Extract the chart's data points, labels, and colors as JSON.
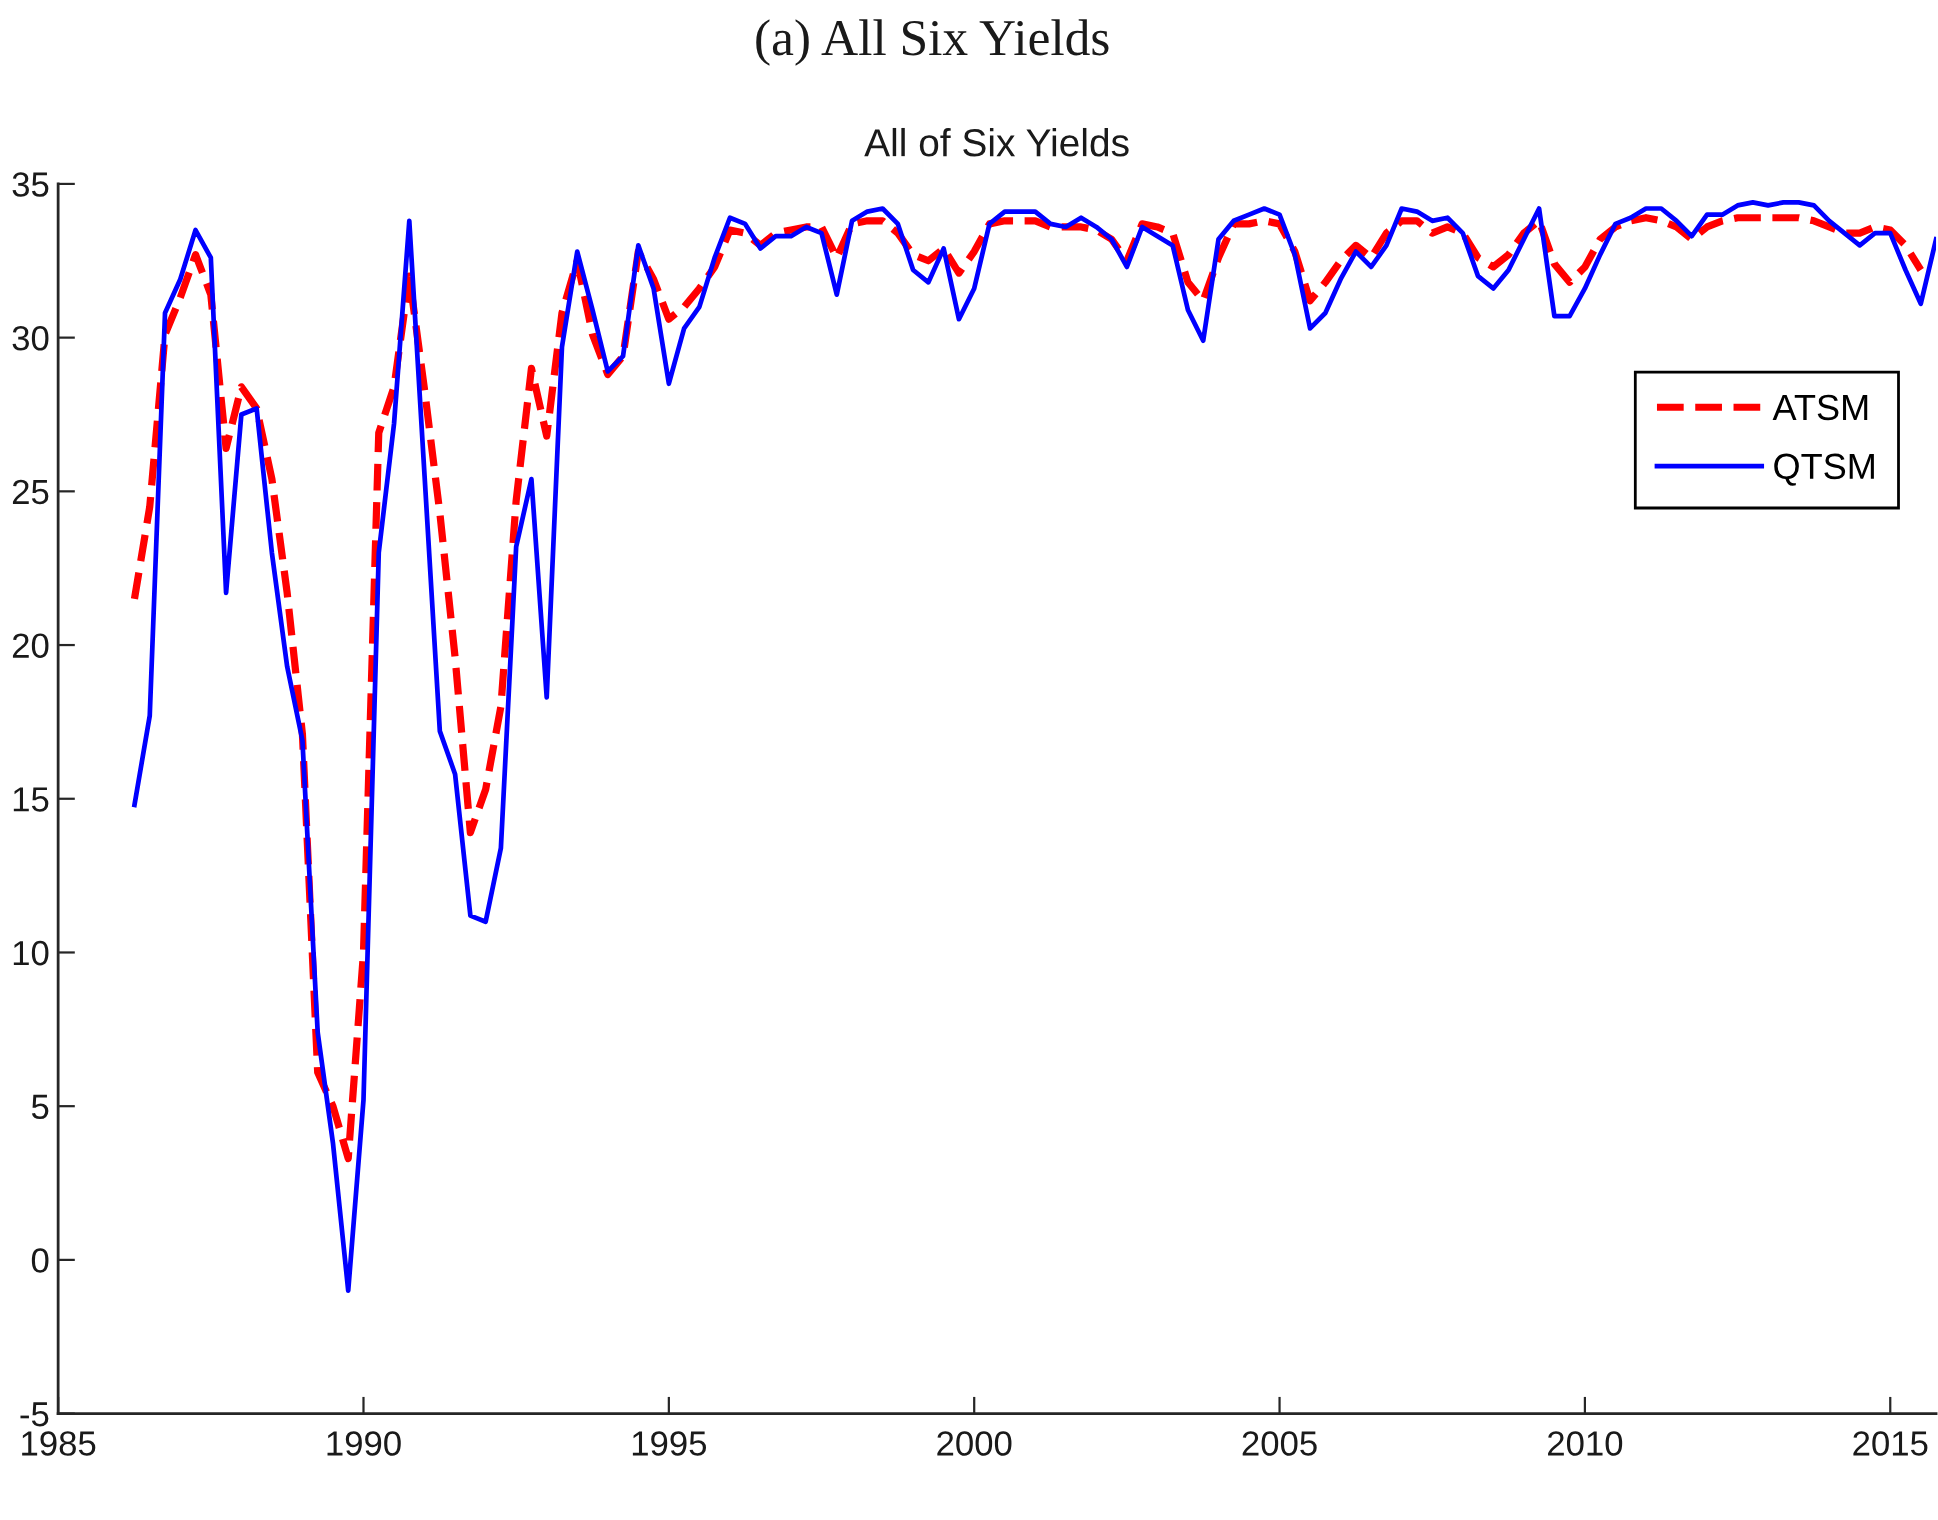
{
  "chart_data": {
    "type": "line",
    "title": "All of Six Yields",
    "annotations": [
      "(a) All Six Yields"
    ],
    "x": [
      1986.25,
      1986.5,
      1986.75,
      1987,
      1987.25,
      1987.5,
      1987.75,
      1988,
      1988.25,
      1988.5,
      1988.75,
      1989,
      1989.25,
      1989.5,
      1989.75,
      1990,
      1990.25,
      1990.5,
      1990.75,
      1991,
      1991.25,
      1991.5,
      1991.75,
      1992,
      1992.25,
      1992.5,
      1992.75,
      1993,
      1993.25,
      1993.5,
      1993.75,
      1994,
      1994.25,
      1994.5,
      1994.75,
      1995,
      1995.25,
      1995.5,
      1995.75,
      1996,
      1996.25,
      1996.5,
      1996.75,
      1997,
      1997.25,
      1997.5,
      1997.75,
      1998,
      1998.25,
      1998.5,
      1998.75,
      1999,
      1999.25,
      1999.5,
      1999.75,
      2000,
      2000.25,
      2000.5,
      2000.75,
      2001,
      2001.25,
      2001.5,
      2001.75,
      2002,
      2002.25,
      2002.5,
      2002.75,
      2003,
      2003.25,
      2003.5,
      2003.75,
      2004,
      2004.25,
      2004.5,
      2004.75,
      2005,
      2005.25,
      2005.5,
      2005.75,
      2006,
      2006.25,
      2006.5,
      2006.75,
      2007,
      2007.25,
      2007.5,
      2007.75,
      2008,
      2008.25,
      2008.5,
      2008.75,
      2009,
      2009.25,
      2009.5,
      2009.75,
      2010,
      2010.25,
      2010.5,
      2010.75,
      2011,
      2011.25,
      2011.5,
      2011.75,
      2012,
      2012.25,
      2012.5,
      2012.75,
      2013,
      2013.25,
      2013.5,
      2013.75,
      2014,
      2014.25,
      2014.5,
      2014.75,
      2015,
      2015.25,
      2015.5,
      2015.75
    ],
    "xlim": [
      1985,
      2015.75
    ],
    "xticks": [
      1985,
      1990,
      1995,
      2000,
      2005,
      2010,
      2015
    ],
    "ylim": [
      -5,
      35
    ],
    "yticks": [
      -5,
      0,
      5,
      10,
      15,
      20,
      25,
      30,
      35
    ],
    "legend": "top right",
    "series": [
      {
        "name": "ATSM",
        "color": "#ff0000",
        "line_style": "dashed",
        "values": [
          21.5,
          24.5,
          30.1,
          31.3,
          32.7,
          31.4,
          26.4,
          28.4,
          27.7,
          25.4,
          21.7,
          17.1,
          6.1,
          5.0,
          3.3,
          10.0,
          26.9,
          28.4,
          32.0,
          28.3,
          24.3,
          19.6,
          13.9,
          15.3,
          18.0,
          24.7,
          29.0,
          26.8,
          30.8,
          32.5,
          30.1,
          28.8,
          29.4,
          32.8,
          31.9,
          30.6,
          31.0,
          31.6,
          32.3,
          33.5,
          33.4,
          33.0,
          33.4,
          33.5,
          33.6,
          33.6,
          32.6,
          33.7,
          33.8,
          33.8,
          33.4,
          32.7,
          32.5,
          32.9,
          32.1,
          32.8,
          33.7,
          33.8,
          33.8,
          33.8,
          33.6,
          33.6,
          33.6,
          33.5,
          33.2,
          32.5,
          33.7,
          33.6,
          33.4,
          31.8,
          31.2,
          32.6,
          33.7,
          33.7,
          33.8,
          33.7,
          32.8,
          31.2,
          31.8,
          32.5,
          33.0,
          32.6,
          33.4,
          33.8,
          33.8,
          33.4,
          33.6,
          33.4,
          32.6,
          32.3,
          32.7,
          33.4,
          33.8,
          32.4,
          31.8,
          32.3,
          33.2,
          33.6,
          33.8,
          33.9,
          33.8,
          33.6,
          33.2,
          33.6,
          33.8,
          33.9,
          33.9,
          33.9,
          33.9,
          33.9,
          33.8,
          33.6,
          33.4,
          33.4,
          33.6,
          33.5,
          33.0,
          32.2,
          null
        ]
      },
      {
        "name": "QTSM",
        "color": "#0000ff",
        "line_style": "solid",
        "values": [
          14.8,
          17.7,
          30.8,
          31.9,
          33.5,
          32.6,
          21.7,
          27.5,
          27.7,
          23.0,
          19.3,
          16.9,
          7.4,
          3.8,
          -1.0,
          5.2,
          23.0,
          27.2,
          33.8,
          25.5,
          17.2,
          15.8,
          11.2,
          11.0,
          13.4,
          23.2,
          25.4,
          18.3,
          29.7,
          32.8,
          30.9,
          28.9,
          29.4,
          33.0,
          31.6,
          28.5,
          30.3,
          31.0,
          32.6,
          33.9,
          33.7,
          32.9,
          33.3,
          33.3,
          33.6,
          33.4,
          31.4,
          33.8,
          34.1,
          34.2,
          33.7,
          32.2,
          31.8,
          32.9,
          30.6,
          31.6,
          33.7,
          34.1,
          34.1,
          34.1,
          33.7,
          33.6,
          33.9,
          33.6,
          33.2,
          32.3,
          33.6,
          33.3,
          33.0,
          30.9,
          29.9,
          33.2,
          33.8,
          34.0,
          34.2,
          34.0,
          32.7,
          30.3,
          30.8,
          31.9,
          32.8,
          32.3,
          33.0,
          34.2,
          34.1,
          33.8,
          33.9,
          33.4,
          32.0,
          31.6,
          32.2,
          33.2,
          34.2,
          30.7,
          30.7,
          31.6,
          32.7,
          33.7,
          33.9,
          34.2,
          34.2,
          33.8,
          33.3,
          34.0,
          34.0,
          34.3,
          34.4,
          34.3,
          34.4,
          34.4,
          34.3,
          33.8,
          33.4,
          33.0,
          33.4,
          33.4,
          32.2,
          31.1,
          33.2
        ]
      }
    ]
  }
}
